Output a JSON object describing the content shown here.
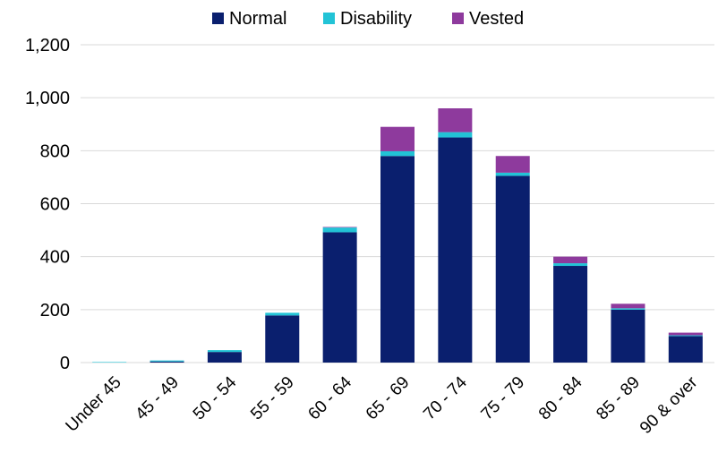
{
  "chart_data": {
    "type": "bar",
    "stacked": true,
    "categories": [
      "Under 45",
      "45 - 49",
      "50 - 54",
      "55 - 59",
      "60 - 64",
      "65 - 69",
      "70 - 74",
      "75 - 79",
      "80 - 84",
      "85 - 89",
      "90 & over"
    ],
    "series": [
      {
        "name": "Normal",
        "color": "#0a1f6e",
        "values": [
          0,
          4,
          40,
          178,
          492,
          780,
          850,
          705,
          365,
          200,
          100
        ]
      },
      {
        "name": "Disability",
        "color": "#22c3d6",
        "values": [
          2,
          4,
          7,
          10,
          18,
          18,
          20,
          12,
          10,
          5,
          3
        ]
      },
      {
        "name": "Vested",
        "color": "#8e3a9d",
        "values": [
          0,
          0,
          0,
          0,
          2,
          92,
          90,
          63,
          25,
          17,
          10
        ]
      }
    ],
    "ylim": [
      0,
      1200
    ],
    "yticks": [
      "0",
      "200",
      "400",
      "600",
      "800",
      "1,000",
      "1,200"
    ],
    "ytick_values": [
      0,
      200,
      400,
      600,
      800,
      1000,
      1200
    ],
    "legend_position": "top-center",
    "grid": true
  }
}
